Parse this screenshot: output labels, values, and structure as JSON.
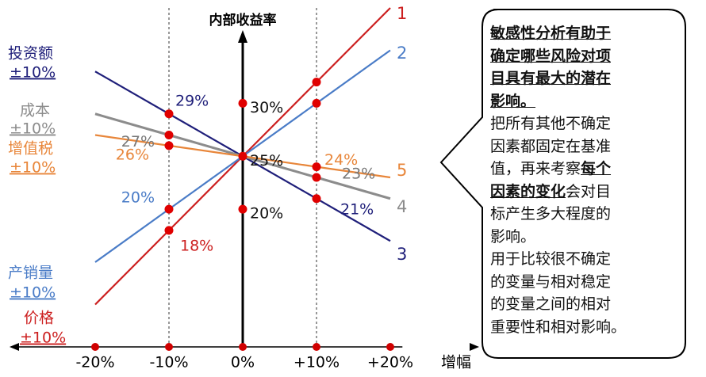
{
  "chart_data": {
    "type": "line",
    "y_axis_label": "内部收益率",
    "x_axis_label": "增幅",
    "x": [
      -20,
      -10,
      0,
      10,
      20
    ],
    "xlim": [
      -21,
      21
    ],
    "ylim": [
      7,
      39
    ],
    "xticks": [
      {
        "value": -20,
        "label": "-20%"
      },
      {
        "value": -10,
        "label": "-10%"
      },
      {
        "value": 0,
        "label": "0%"
      },
      {
        "value": 10,
        "label": "+10%"
      },
      {
        "value": 20,
        "label": "+20%"
      }
    ],
    "guides": [
      -10,
      10
    ],
    "series": [
      {
        "name": "价格",
        "range_label": "±10%",
        "number": "1",
        "color": "#cc1f1f",
        "values": [
          11,
          18,
          25,
          32,
          39
        ],
        "value_labels": [
          null,
          "18%",
          null,
          null,
          null
        ]
      },
      {
        "name": "产销量",
        "range_label": "±10%",
        "number": "2",
        "color": "#4a7cc7",
        "values": [
          15,
          20,
          25,
          30,
          35
        ],
        "value_labels": [
          null,
          "20%",
          null,
          null,
          null
        ]
      },
      {
        "name": "投资额",
        "range_label": "±10%",
        "number": "3",
        "color": "#1f1f7a",
        "values": [
          33,
          29,
          25,
          21,
          17
        ],
        "value_labels": [
          null,
          "29%",
          null,
          "21%",
          null
        ]
      },
      {
        "name": "成本",
        "range_label": "±10%",
        "number": "4",
        "color": "#8c8c8c",
        "values": [
          29,
          27,
          25,
          23,
          21
        ],
        "value_labels": [
          null,
          "27%",
          null,
          "23%",
          null
        ]
      },
      {
        "name": "增值税",
        "range_label": "±10%",
        "number": "5",
        "color": "#e8863a",
        "values": [
          27,
          26,
          25,
          24,
          23
        ],
        "value_labels": [
          null,
          "26%",
          null,
          "24%",
          null
        ]
      }
    ],
    "axis_points": [
      {
        "value": 30,
        "label": "30%"
      },
      {
        "value": 25,
        "label": "25%"
      },
      {
        "value": 20,
        "label": "20%"
      }
    ]
  },
  "callout": {
    "heading": [
      "敏感性分析有助于",
      "确定哪些风险对项",
      "目具有最大的潜在",
      "影响。"
    ],
    "body": [
      [
        {
          "text": "把所有其他不确定"
        }
      ],
      [
        {
          "text": "因素都固定在基准"
        }
      ],
      [
        {
          "text": "值，再来考察"
        },
        {
          "text": "每个",
          "bold": true
        }
      ],
      [
        {
          "text": "因素的变化",
          "bold": true
        },
        {
          "text": "会对目"
        }
      ],
      [
        {
          "text": "标产生多大程度的"
        }
      ],
      [
        {
          "text": "影响。"
        }
      ],
      [
        {
          "text": "用于比较很不确定"
        }
      ],
      [
        {
          "text": "的变量与相对稳定"
        }
      ],
      [
        {
          "text": "的变量之间的相对"
        }
      ],
      [
        {
          "text": "重要性和相对影响。"
        }
      ]
    ]
  }
}
